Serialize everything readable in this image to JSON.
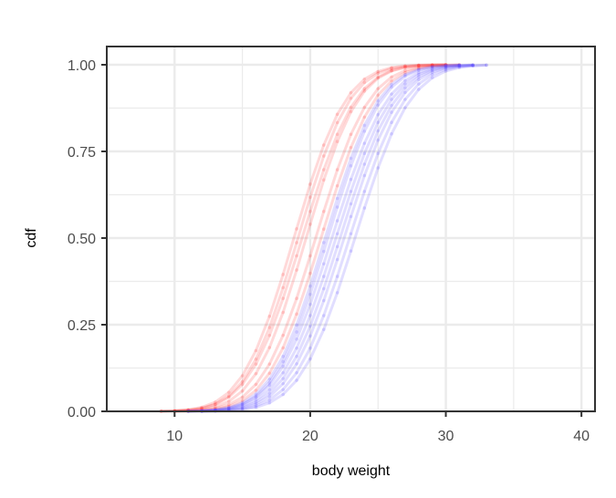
{
  "chart_data": {
    "type": "line",
    "title": "",
    "xlabel": "body weight",
    "ylabel": "cdf",
    "xlim": [
      5,
      41
    ],
    "ylim": [
      0,
      1
    ],
    "x_ticks": [
      10,
      20,
      30,
      40
    ],
    "y_ticks": [
      0.0,
      0.25,
      0.5,
      0.75,
      1.0
    ],
    "x_tick_labels": [
      "10",
      "20",
      "30",
      "40"
    ],
    "y_tick_labels": [
      "0.00",
      "0.25",
      "0.50",
      "0.75",
      "1.00"
    ],
    "grid": true,
    "legend": "none",
    "curve_model": "normal cdf, evaluated at every integer x in the series range",
    "colors": {
      "red_group": "#ff2a2a",
      "blue_group": "#5a46ff",
      "grid": "#ebebeb",
      "panel_border": "#333333"
    },
    "series": [
      {
        "group": "red",
        "mean": 18.8,
        "sd": 3.0,
        "x_range": [
          9,
          30
        ]
      },
      {
        "group": "red",
        "mean": 19.1,
        "sd": 3.0,
        "x_range": [
          9,
          30
        ]
      },
      {
        "group": "red",
        "mean": 19.4,
        "sd": 3.1,
        "x_range": [
          9,
          30
        ]
      },
      {
        "group": "red",
        "mean": 19.7,
        "sd": 3.0,
        "x_range": [
          10,
          30
        ]
      },
      {
        "group": "red",
        "mean": 20.4,
        "sd": 3.1,
        "x_range": [
          10,
          31
        ]
      },
      {
        "group": "red",
        "mean": 20.8,
        "sd": 3.1,
        "x_range": [
          10,
          31
        ]
      },
      {
        "group": "blue",
        "mean": 21.1,
        "sd": 3.1,
        "x_range": [
          11,
          31
        ]
      },
      {
        "group": "blue",
        "mean": 21.3,
        "sd": 3.1,
        "x_range": [
          11,
          31
        ]
      },
      {
        "group": "blue",
        "mean": 21.6,
        "sd": 3.2,
        "x_range": [
          11,
          32
        ]
      },
      {
        "group": "blue",
        "mean": 21.9,
        "sd": 3.2,
        "x_range": [
          11,
          32
        ]
      },
      {
        "group": "blue",
        "mean": 22.2,
        "sd": 3.2,
        "x_range": [
          12,
          32
        ]
      },
      {
        "group": "blue",
        "mean": 22.5,
        "sd": 3.2,
        "x_range": [
          12,
          32
        ]
      },
      {
        "group": "blue",
        "mean": 22.9,
        "sd": 3.2,
        "x_range": [
          12,
          33
        ]
      },
      {
        "group": "blue",
        "mean": 23.3,
        "sd": 3.2,
        "x_range": [
          12,
          33
        ]
      }
    ]
  }
}
